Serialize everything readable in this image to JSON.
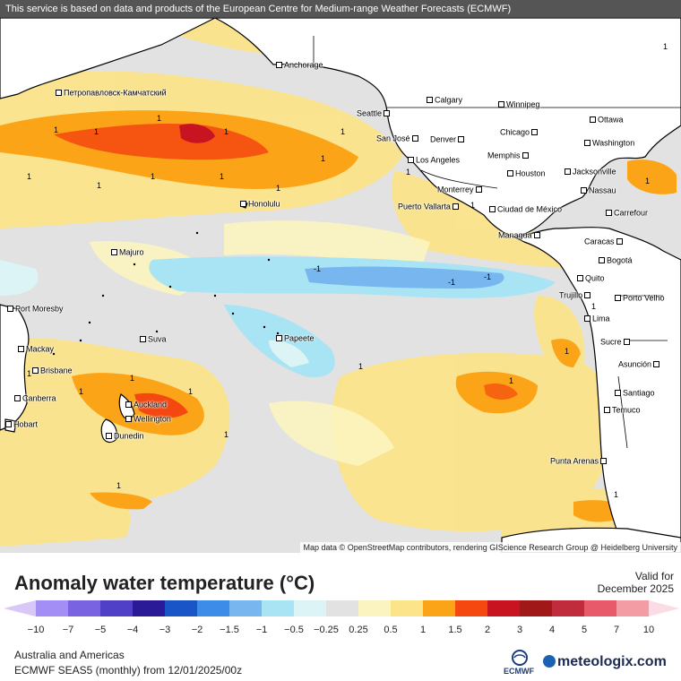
{
  "banner": "This service is based on data and products of the European Centre for Medium-range Weather Forecasts (ECMWF)",
  "attribution": "Map data © OpenStreetMap contributors, rendering GIScience Research Group @ Heidelberg University",
  "cities": [
    {
      "name": "Anchorage"
    },
    {
      "name": "Петропавловск-Камчатский"
    },
    {
      "name": "Calgary"
    },
    {
      "name": "Winnipeg"
    },
    {
      "name": "Seattle"
    },
    {
      "name": "Ottawa"
    },
    {
      "name": "Chicago"
    },
    {
      "name": "Washington"
    },
    {
      "name": "San José"
    },
    {
      "name": "Denver"
    },
    {
      "name": "Memphis"
    },
    {
      "name": "Los Angeles"
    },
    {
      "name": "Jacksonville"
    },
    {
      "name": "Houston"
    },
    {
      "name": "Monterrey"
    },
    {
      "name": "Nassau"
    },
    {
      "name": "Honolulu"
    },
    {
      "name": "Puerto Vallarta"
    },
    {
      "name": "Ciudad de México"
    },
    {
      "name": "Carrefour"
    },
    {
      "name": "Managua"
    },
    {
      "name": "Caracas"
    },
    {
      "name": "Majuro"
    },
    {
      "name": "Bogotá"
    },
    {
      "name": "Quito"
    },
    {
      "name": "Trujillo"
    },
    {
      "name": "Porto Velho"
    },
    {
      "name": "Port Moresby"
    },
    {
      "name": "Lima"
    },
    {
      "name": "Papeete"
    },
    {
      "name": "Suva"
    },
    {
      "name": "Sucre"
    },
    {
      "name": "Mackay"
    },
    {
      "name": "Brisbane"
    },
    {
      "name": "Asunción"
    },
    {
      "name": "Canberra"
    },
    {
      "name": "Santiago"
    },
    {
      "name": "Auckland"
    },
    {
      "name": "Wellington"
    },
    {
      "name": "Temuco"
    },
    {
      "name": "Hobart"
    },
    {
      "name": "Dunedin"
    },
    {
      "name": "Punta Arenas"
    }
  ],
  "contour_labels": [
    "1",
    "1",
    "1",
    "1",
    "1",
    "1",
    "1",
    "1",
    "1",
    "1",
    "1",
    "1",
    "1",
    "1",
    "1",
    "1",
    "1",
    "-1",
    "-1",
    "-1",
    "1",
    "1",
    "1",
    "1",
    "1",
    "1",
    "1",
    "1",
    "1"
  ],
  "legend": {
    "title": "Anomaly water temperature (°C)",
    "valid_label": "Valid for",
    "valid_date": "December 2025",
    "colors": [
      "#a38ef5",
      "#7a63e0",
      "#5040c8",
      "#2a1a98",
      "#1a55c8",
      "#3c8ce8",
      "#78b6f0",
      "#a8e4f4",
      "#dcf4f6",
      "#e2e2e2",
      "#fcf4c0",
      "#fce48a",
      "#fca418",
      "#f44810",
      "#c81420",
      "#a01818",
      "#c02c3c",
      "#e85a6a",
      "#f49ca4"
    ],
    "under_color": "#d8c8f8",
    "over_color": "#fcdce4",
    "ticks": [
      "−10",
      "−7",
      "−5",
      "−4",
      "−3",
      "−2",
      "−1.5",
      "−1",
      "−0.5",
      "−0.25",
      "0.25",
      "0.5",
      "1",
      "1.5",
      "2",
      "3",
      "4",
      "5",
      "7",
      "10"
    ]
  },
  "footer": {
    "region": "Australia and Americas",
    "model": "ECMWF SEAS5 (monthly) from 12/01/2025/00z",
    "ecmwf_logo_text": "ECMWF",
    "brand": "meteologix.com"
  },
  "colors": {
    "land": "#ffffff",
    "ocean_neutral": "#e2e2e2",
    "warm_light": "#fcf4c0",
    "warm": "#fce48a",
    "warm_orange": "#fca418",
    "hot": "#f44810",
    "cool": "#a8e4f4",
    "cooler": "#78b6f0"
  }
}
